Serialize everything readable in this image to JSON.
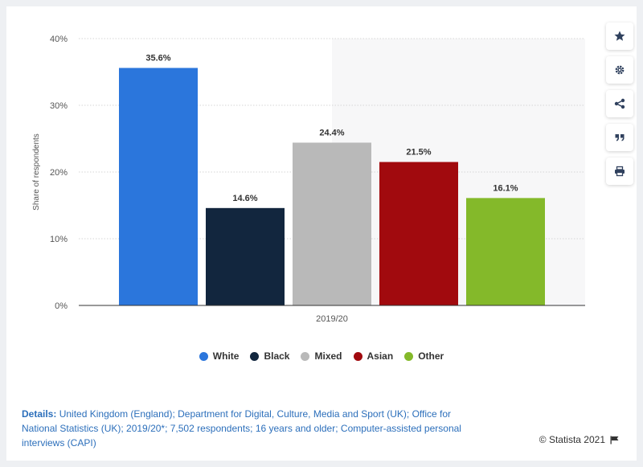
{
  "chart_data": {
    "type": "bar",
    "categories": [
      "2019/20"
    ],
    "series": [
      {
        "name": "White",
        "value": 35.6,
        "label": "35.6%",
        "color": "#2b76dc"
      },
      {
        "name": "Black",
        "value": 14.6,
        "label": "14.6%",
        "color": "#12263e"
      },
      {
        "name": "Mixed",
        "value": 24.4,
        "label": "24.4%",
        "color": "#b9b9b9"
      },
      {
        "name": "Asian",
        "value": 21.5,
        "label": "21.5%",
        "color": "#a10a0e"
      },
      {
        "name": "Other",
        "value": 16.1,
        "label": "16.1%",
        "color": "#84b92a"
      }
    ],
    "ylabel": "Share of respondents",
    "ylim": [
      0,
      40
    ],
    "yticks": [
      "0%",
      "10%",
      "20%",
      "30%",
      "40%"
    ],
    "ytick_values": [
      0,
      10,
      20,
      30,
      40
    ],
    "grid": true,
    "legend_position": "bottom"
  },
  "toolbar": {
    "icons": [
      "star-icon",
      "gear-icon",
      "share-icon",
      "quote-icon",
      "print-icon"
    ]
  },
  "details": {
    "prefix": "Details:",
    "text": "United Kingdom (England); Department for Digital, Culture, Media and Sport (UK); Office for National Statistics (UK); 2019/20*; 7,502 respondents; 16 years and older; Computer-assisted personal interviews (CAPI)"
  },
  "credit": {
    "text": "© Statista 2021",
    "flag_icon": "flag-icon"
  }
}
